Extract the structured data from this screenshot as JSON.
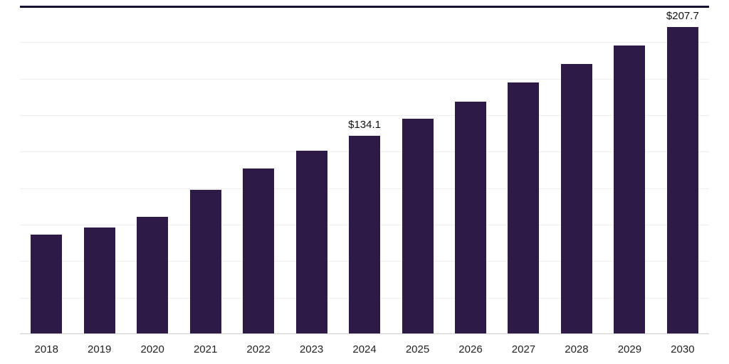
{
  "chart_data": {
    "type": "bar",
    "title": "",
    "xlabel": "",
    "ylabel": "",
    "legend": false,
    "grid": true,
    "categories": [
      "2018",
      "2019",
      "2020",
      "2021",
      "2022",
      "2023",
      "2024",
      "2025",
      "2026",
      "2027",
      "2028",
      "2029",
      "2030"
    ],
    "values": [
      67.3,
      72.0,
      79.2,
      97.5,
      112.0,
      124.0,
      134.1,
      145.5,
      157.2,
      170.3,
      182.6,
      195.2,
      207.7
    ],
    "data_labels": [
      "",
      "",
      "",
      "",
      "",
      "",
      "$134.1",
      "",
      "",
      "",
      "",
      "",
      "$207.7"
    ],
    "ylim": [
      0,
      222
    ],
    "gridline_divisions": 9,
    "colors": {
      "bar": "#2E1A47",
      "gridline": "#EFEFEF",
      "axis_line": "#CFCFCF",
      "top_border": "#171130",
      "value_label": "#111111",
      "tick_label": "#222222"
    }
  }
}
